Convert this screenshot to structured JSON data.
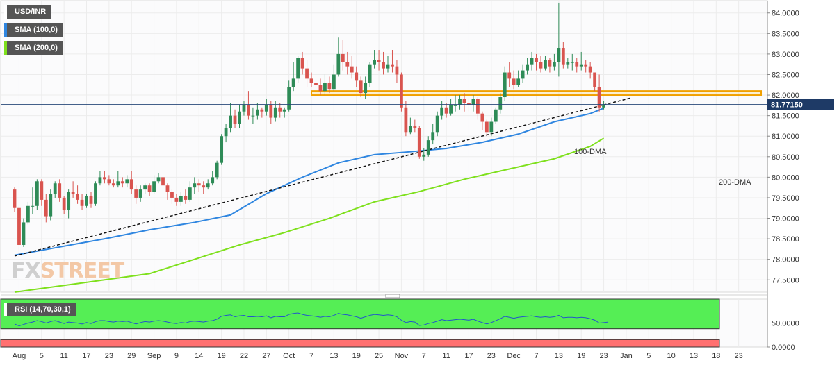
{
  "legend": {
    "symbol": "USD/INR",
    "sma100": "SMA (100,0)",
    "sma200": "SMA (200,0)"
  },
  "watermark": {
    "fx": "FX",
    "street": "STREET"
  },
  "price_label": "81.77150",
  "colors": {
    "up": "#2e8b57",
    "down": "#d9544f",
    "sma100": "#2f86e0",
    "sma200": "#7ee01c",
    "zone": "#f0a000",
    "rsi_band": "#55ee55",
    "rsi_low": "#ff7070"
  },
  "chart_data": [
    {
      "type": "candlestick",
      "title": "USD/INR",
      "ylim": [
        77.2,
        84.3
      ],
      "yticks": [
        "84.0000",
        "83.5000",
        "83.0000",
        "82.5000",
        "82.0000",
        "81.5000",
        "81.0000",
        "80.5000",
        "80.0000",
        "79.5000",
        "79.0000",
        "78.5000",
        "78.0000",
        "77.5000"
      ],
      "ytick_values": [
        84,
        83.5,
        83,
        82.5,
        82,
        81.5,
        81,
        80.5,
        80,
        79.5,
        79,
        78.5,
        78,
        77.5
      ],
      "xticks": [
        "Aug",
        "5",
        "11",
        "17",
        "23",
        "29",
        "Sep",
        "9",
        "14",
        "19",
        "22",
        "27",
        "Oct",
        "7",
        "13",
        "19",
        "25",
        "Nov",
        "7",
        "11",
        "17",
        "23",
        "Dec",
        "7",
        "13",
        "19",
        "23",
        "Jan",
        "5",
        "10",
        "13",
        "18",
        "23"
      ],
      "xtick_index": [
        1,
        6,
        11,
        16,
        21,
        26,
        31,
        36,
        41,
        46,
        51,
        56,
        61,
        66,
        71,
        76,
        81,
        86,
        91,
        96,
        101,
        106,
        111,
        116,
        121,
        126,
        131,
        136,
        141,
        146,
        151,
        156,
        161
      ],
      "last_price": 81.7715,
      "candles": [
        [
          79.7,
          79.25,
          79.75,
          79.15
        ],
        [
          79.25,
          78.35,
          79.3,
          78.05
        ],
        [
          78.35,
          78.9,
          79.0,
          78.3
        ],
        [
          78.9,
          79.3,
          79.4,
          78.85
        ],
        [
          79.3,
          79.3,
          79.75,
          79.1
        ],
        [
          79.3,
          79.9,
          79.95,
          79.2
        ],
        [
          79.9,
          79.45,
          79.95,
          79.3
        ],
        [
          79.45,
          79.05,
          79.6,
          78.9
        ],
        [
          79.05,
          79.6,
          79.7,
          78.95
        ],
        [
          79.6,
          79.85,
          79.9,
          79.5
        ],
        [
          79.85,
          79.5,
          79.95,
          79.4
        ],
        [
          79.5,
          79.2,
          79.55,
          79.1
        ],
        [
          79.2,
          79.65,
          79.7,
          79.0
        ],
        [
          79.65,
          79.6,
          79.9,
          79.5
        ],
        [
          79.6,
          79.45,
          79.8,
          79.35
        ],
        [
          79.45,
          79.3,
          79.6,
          79.2
        ],
        [
          79.3,
          79.55,
          79.6,
          79.25
        ],
        [
          79.55,
          79.35,
          79.65,
          79.25
        ],
        [
          79.35,
          79.85,
          79.9,
          79.3
        ],
        [
          79.85,
          80.0,
          80.15,
          79.8
        ],
        [
          80.0,
          79.95,
          80.15,
          79.85
        ],
        [
          79.95,
          79.85,
          80.05,
          79.8
        ],
        [
          79.85,
          79.8,
          79.95,
          79.75
        ],
        [
          79.8,
          79.9,
          80.15,
          79.75
        ],
        [
          79.9,
          79.85,
          80.0,
          79.75
        ],
        [
          79.85,
          79.95,
          80.05,
          79.75
        ],
        [
          79.95,
          79.7,
          80.15,
          79.6
        ],
        [
          79.7,
          79.5,
          79.8,
          79.35
        ],
        [
          79.5,
          79.7,
          79.8,
          79.4
        ],
        [
          79.7,
          79.8,
          79.85,
          79.6
        ],
        [
          79.8,
          79.65,
          79.85,
          79.55
        ],
        [
          79.65,
          79.9,
          80.05,
          79.6
        ],
        [
          79.9,
          80.0,
          80.1,
          79.85
        ],
        [
          80.0,
          79.8,
          80.05,
          79.7
        ],
        [
          79.8,
          79.65,
          79.85,
          79.45
        ],
        [
          79.65,
          79.5,
          79.7,
          79.35
        ],
        [
          79.5,
          79.4,
          79.6,
          79.3
        ],
        [
          79.4,
          79.55,
          79.65,
          79.3
        ],
        [
          79.55,
          79.45,
          79.7,
          79.35
        ],
        [
          79.45,
          79.75,
          79.9,
          79.4
        ],
        [
          79.75,
          79.85,
          80.0,
          79.6
        ],
        [
          79.85,
          79.8,
          79.95,
          79.65
        ],
        [
          79.8,
          79.75,
          79.9,
          79.6
        ],
        [
          79.75,
          79.85,
          79.95,
          79.7
        ],
        [
          79.85,
          80.0,
          80.15,
          79.8
        ],
        [
          80.0,
          80.35,
          80.4,
          79.95
        ],
        [
          80.35,
          81.0,
          81.05,
          80.3
        ],
        [
          81.0,
          81.2,
          81.3,
          80.85
        ],
        [
          81.2,
          81.5,
          81.8,
          81.1
        ],
        [
          81.5,
          81.3,
          81.65,
          81.2
        ],
        [
          81.3,
          81.6,
          81.75,
          81.2
        ],
        [
          81.6,
          81.75,
          81.85,
          81.5
        ],
        [
          81.75,
          81.5,
          82.1,
          81.4
        ],
        [
          81.5,
          81.5,
          81.7,
          81.3
        ],
        [
          81.5,
          81.65,
          81.8,
          81.4
        ],
        [
          81.65,
          81.6,
          81.7,
          81.45
        ],
        [
          81.6,
          81.75,
          81.9,
          81.5
        ],
        [
          81.75,
          81.45,
          81.85,
          81.3
        ],
        [
          81.45,
          81.7,
          81.85,
          81.35
        ],
        [
          81.7,
          81.6,
          81.8,
          81.45
        ],
        [
          81.6,
          81.65,
          81.7,
          81.45
        ],
        [
          81.65,
          82.2,
          82.35,
          81.6
        ],
        [
          82.2,
          82.4,
          82.8,
          82.1
        ],
        [
          82.4,
          82.9,
          82.95,
          82.3
        ],
        [
          82.9,
          82.65,
          83.05,
          82.5
        ],
        [
          82.65,
          82.4,
          82.85,
          82.2
        ],
        [
          82.4,
          82.3,
          82.55,
          82.2
        ],
        [
          82.3,
          82.25,
          82.5,
          82.1
        ],
        [
          82.25,
          82.1,
          82.4,
          82.0
        ],
        [
          82.1,
          82.3,
          82.5,
          82.0
        ],
        [
          82.3,
          82.15,
          82.45,
          82.05
        ],
        [
          82.15,
          82.5,
          82.75,
          82.1
        ],
        [
          82.5,
          83.0,
          83.4,
          82.45
        ],
        [
          83.0,
          82.8,
          83.35,
          82.6
        ],
        [
          82.8,
          82.7,
          83.05,
          82.5
        ],
        [
          82.7,
          82.55,
          82.95,
          82.4
        ],
        [
          82.55,
          82.35,
          82.7,
          82.2
        ],
        [
          82.35,
          82.05,
          82.45,
          81.95
        ],
        [
          82.05,
          82.3,
          82.45,
          81.9
        ],
        [
          82.3,
          82.75,
          82.8,
          82.2
        ],
        [
          82.75,
          82.85,
          83.1,
          82.65
        ],
        [
          82.85,
          82.8,
          83.1,
          82.6
        ],
        [
          82.8,
          82.65,
          83.05,
          82.5
        ],
        [
          82.65,
          82.75,
          82.95,
          82.55
        ],
        [
          82.75,
          82.7,
          83.1,
          82.55
        ],
        [
          82.7,
          82.5,
          82.85,
          82.3
        ],
        [
          82.5,
          81.7,
          82.55,
          81.6
        ],
        [
          81.7,
          81.1,
          81.85,
          81.0
        ],
        [
          81.1,
          81.25,
          81.45,
          81.05
        ],
        [
          81.25,
          81.2,
          81.4,
          81.1
        ],
        [
          81.2,
          80.5,
          81.25,
          80.45
        ],
        [
          80.5,
          80.55,
          80.7,
          80.4
        ],
        [
          80.55,
          80.9,
          81.0,
          80.5
        ],
        [
          80.9,
          81.1,
          81.3,
          80.8
        ],
        [
          81.1,
          81.5,
          81.6,
          81.0
        ],
        [
          81.5,
          81.7,
          81.85,
          81.4
        ],
        [
          81.7,
          81.55,
          81.8,
          81.45
        ],
        [
          81.55,
          81.75,
          81.9,
          81.5
        ],
        [
          81.75,
          81.75,
          82.0,
          81.6
        ],
        [
          81.75,
          81.9,
          82.0,
          81.65
        ],
        [
          81.9,
          81.8,
          82.05,
          81.6
        ],
        [
          81.8,
          81.75,
          81.9,
          81.6
        ],
        [
          81.75,
          81.9,
          82.0,
          81.6
        ],
        [
          81.9,
          81.55,
          81.95,
          81.4
        ],
        [
          81.55,
          81.35,
          81.6,
          81.15
        ],
        [
          81.35,
          81.1,
          81.4,
          81.0
        ],
        [
          81.1,
          81.35,
          81.45,
          81.0
        ],
        [
          81.35,
          81.65,
          81.7,
          81.3
        ],
        [
          81.65,
          81.95,
          82.05,
          81.55
        ],
        [
          81.95,
          82.55,
          82.7,
          81.85
        ],
        [
          82.55,
          82.4,
          82.8,
          82.2
        ],
        [
          82.4,
          82.25,
          82.6,
          82.15
        ],
        [
          82.25,
          82.4,
          82.6,
          82.2
        ],
        [
          82.4,
          82.6,
          82.75,
          82.3
        ],
        [
          82.6,
          82.75,
          82.9,
          82.5
        ],
        [
          82.75,
          82.9,
          83.05,
          82.6
        ],
        [
          82.9,
          82.8,
          83.0,
          82.6
        ],
        [
          82.8,
          82.65,
          82.95,
          82.55
        ],
        [
          82.65,
          82.85,
          82.95,
          82.6
        ],
        [
          82.85,
          82.7,
          82.9,
          82.55
        ],
        [
          82.7,
          82.8,
          83.0,
          82.6
        ],
        [
          82.8,
          83.15,
          84.25,
          82.45
        ],
        [
          83.15,
          82.75,
          83.3,
          82.65
        ],
        [
          82.75,
          82.8,
          82.9,
          82.65
        ],
        [
          82.8,
          82.8,
          83.0,
          82.6
        ],
        [
          82.8,
          82.7,
          82.9,
          82.55
        ],
        [
          82.7,
          82.75,
          83.05,
          82.6
        ],
        [
          82.75,
          82.7,
          82.85,
          82.55
        ],
        [
          82.7,
          82.55,
          82.8,
          82.4
        ],
        [
          82.55,
          82.2,
          82.5,
          82.1
        ],
        [
          82.2,
          81.7,
          82.5,
          81.6
        ],
        [
          81.7,
          81.77,
          81.85,
          81.65
        ]
      ],
      "sma100": [
        [
          0,
          78.1
        ],
        [
          10,
          78.3
        ],
        [
          20,
          78.5
        ],
        [
          30,
          78.72
        ],
        [
          40,
          78.9
        ],
        [
          48,
          79.08
        ],
        [
          56,
          79.6
        ],
        [
          64,
          80.0
        ],
        [
          72,
          80.35
        ],
        [
          80,
          80.55
        ],
        [
          88,
          80.62
        ],
        [
          96,
          80.7
        ],
        [
          104,
          80.85
        ],
        [
          112,
          81.05
        ],
        [
          120,
          81.35
        ],
        [
          128,
          81.55
        ],
        [
          131,
          81.68
        ]
      ],
      "sma200": [
        [
          0,
          77.2
        ],
        [
          10,
          77.35
        ],
        [
          20,
          77.5
        ],
        [
          30,
          77.65
        ],
        [
          40,
          78.0
        ],
        [
          50,
          78.35
        ],
        [
          60,
          78.65
        ],
        [
          70,
          79.0
        ],
        [
          80,
          79.4
        ],
        [
          90,
          79.65
        ],
        [
          100,
          79.95
        ],
        [
          110,
          80.2
        ],
        [
          120,
          80.45
        ],
        [
          128,
          80.75
        ],
        [
          131,
          80.95
        ]
      ],
      "trendline": [
        [
          0,
          78.08
        ],
        [
          137,
          81.93
        ]
      ],
      "resistance_zone": [
        82.0,
        82.1
      ],
      "annotations": [
        "100-DMA",
        "200-DMA"
      ]
    },
    {
      "type": "line",
      "title": "RSI (14,70,30,1)",
      "ylim": [
        0,
        100
      ],
      "yticks": [
        "50.0000",
        "0.0000"
      ],
      "ytick_values": [
        50,
        0
      ],
      "overbought": 70,
      "oversold": 30,
      "rsi": [
        48,
        44,
        47,
        50,
        52,
        55,
        53,
        50,
        53,
        55,
        52,
        49,
        52,
        51,
        50,
        48,
        51,
        49,
        53,
        55,
        55,
        53,
        52,
        54,
        53,
        54,
        51,
        48,
        51,
        53,
        52,
        54,
        55,
        54,
        52,
        50,
        49,
        51,
        50,
        53,
        54,
        53,
        52,
        54,
        55,
        58,
        64,
        66,
        67,
        63,
        65,
        66,
        63,
        63,
        64,
        63,
        65,
        61,
        64,
        63,
        63,
        68,
        70,
        71,
        68,
        66,
        65,
        64,
        62,
        64,
        63,
        66,
        70,
        68,
        67,
        65,
        63,
        60,
        63,
        66,
        68,
        67,
        66,
        67,
        66,
        63,
        56,
        51,
        53,
        52,
        45,
        46,
        49,
        51,
        54,
        57,
        55,
        56,
        57,
        58,
        57,
        56,
        58,
        54,
        51,
        48,
        51,
        55,
        59,
        64,
        62,
        60,
        62,
        63,
        64,
        65,
        63,
        62,
        63,
        62,
        63,
        66,
        61,
        62,
        62,
        61,
        62,
        61,
        59,
        56,
        50,
        51,
        52
      ]
    }
  ]
}
